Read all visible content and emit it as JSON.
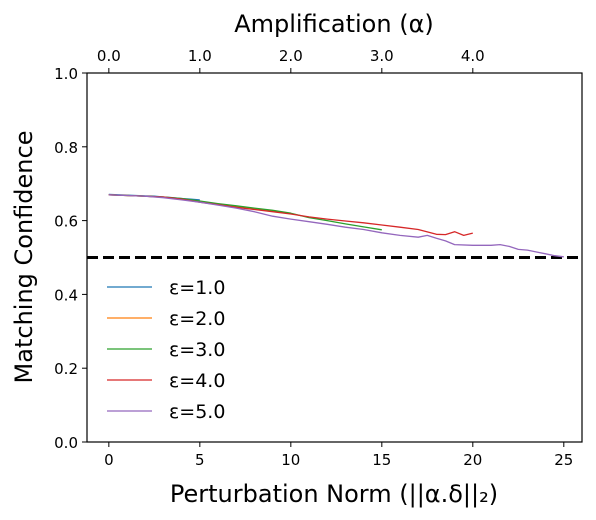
{
  "chart_data": {
    "type": "line",
    "xlabel": "Perturbation Norm (||α.δ||₂)",
    "top_xlabel": "Amplification (α)",
    "ylabel": "Matching Confidence",
    "xlim": [
      -1.2,
      26
    ],
    "ylim": [
      0.0,
      1.0
    ],
    "xticks": [
      0,
      5,
      10,
      15,
      20,
      25
    ],
    "yticks": [
      0.0,
      0.2,
      0.4,
      0.6,
      0.8,
      1.0
    ],
    "ytick_labels": [
      "0.0",
      "0.2",
      "0.4",
      "0.6",
      "0.8",
      "1.0"
    ],
    "top_xticks": [
      0.0,
      1.0,
      2.0,
      3.0,
      4.0
    ],
    "top_xtick_labels": [
      "0.0",
      "1.0",
      "2.0",
      "3.0",
      "4.0"
    ],
    "top_x_scale": 5.0,
    "threshold": {
      "y": 0.5,
      "style": "dashed",
      "color": "#000000"
    },
    "grid": false,
    "legend_position": "lower-left",
    "series": [
      {
        "name": "ε=1.0",
        "color": "#1f77b4",
        "x": [
          0,
          0.5,
          1,
          1.5,
          2,
          2.5,
          3,
          3.5,
          4,
          4.5,
          5
        ],
        "y": [
          0.671,
          0.67,
          0.669,
          0.668,
          0.667,
          0.666,
          0.664,
          0.662,
          0.66,
          0.658,
          0.656
        ]
      },
      {
        "name": "ε=2.0",
        "color": "#ff7f0e",
        "x": [
          0,
          1,
          2,
          3,
          4,
          5,
          6,
          7,
          8,
          9,
          10
        ],
        "y": [
          0.67,
          0.668,
          0.666,
          0.663,
          0.659,
          0.652,
          0.645,
          0.638,
          0.632,
          0.627,
          0.619
        ]
      },
      {
        "name": "ε=3.0",
        "color": "#2ca02c",
        "x": [
          0,
          1,
          2,
          3,
          4,
          5,
          6,
          7,
          8,
          9,
          10,
          11,
          12,
          13,
          14,
          15
        ],
        "y": [
          0.67,
          0.668,
          0.666,
          0.664,
          0.66,
          0.653,
          0.646,
          0.64,
          0.634,
          0.628,
          0.62,
          0.608,
          0.6,
          0.591,
          0.583,
          0.575
        ]
      },
      {
        "name": "ε=4.0",
        "color": "#d62728",
        "x": [
          0,
          1,
          2,
          3,
          4,
          5,
          6,
          7,
          8,
          9,
          10,
          11,
          12,
          13,
          14,
          15,
          16,
          17,
          18,
          18.5,
          19,
          19.5,
          20
        ],
        "y": [
          0.67,
          0.668,
          0.666,
          0.664,
          0.658,
          0.65,
          0.643,
          0.636,
          0.63,
          0.624,
          0.618,
          0.61,
          0.604,
          0.599,
          0.594,
          0.588,
          0.582,
          0.576,
          0.563,
          0.562,
          0.57,
          0.56,
          0.566
        ]
      },
      {
        "name": "ε=5.0",
        "color": "#9467bd",
        "x": [
          0,
          1,
          2,
          3,
          4,
          5,
          6,
          7,
          8,
          9,
          10,
          11,
          12,
          13,
          14,
          15,
          16,
          17,
          17.5,
          18,
          18.5,
          19,
          20,
          21,
          21.5,
          22,
          22.5,
          23,
          23.5,
          24,
          24.5,
          25
        ],
        "y": [
          0.67,
          0.668,
          0.666,
          0.662,
          0.656,
          0.65,
          0.642,
          0.634,
          0.624,
          0.612,
          0.604,
          0.597,
          0.59,
          0.582,
          0.576,
          0.567,
          0.56,
          0.555,
          0.56,
          0.552,
          0.545,
          0.535,
          0.533,
          0.533,
          0.535,
          0.53,
          0.522,
          0.52,
          0.515,
          0.51,
          0.505,
          0.502
        ]
      }
    ]
  }
}
